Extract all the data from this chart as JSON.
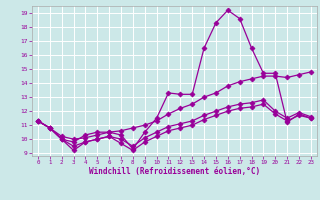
{
  "xlabel": "Windchill (Refroidissement éolien,°C)",
  "xlim": [
    -0.5,
    23.5
  ],
  "ylim": [
    8.8,
    19.5
  ],
  "yticks": [
    9,
    10,
    11,
    12,
    13,
    14,
    15,
    16,
    17,
    18,
    19
  ],
  "xticks": [
    0,
    1,
    2,
    3,
    4,
    5,
    6,
    7,
    8,
    9,
    10,
    11,
    12,
    13,
    14,
    15,
    16,
    17,
    18,
    19,
    20,
    21,
    22,
    23
  ],
  "bg_color": "#cce8e8",
  "grid_color": "#ffffff",
  "line_color": "#990099",
  "lines": [
    {
      "x": [
        0,
        1,
        2,
        3,
        4,
        5,
        6,
        7,
        8,
        9,
        10,
        11,
        12,
        13,
        14,
        15,
        16,
        17,
        18,
        19,
        20,
        21,
        22,
        23
      ],
      "y": [
        11.3,
        10.8,
        10.0,
        9.8,
        10.3,
        10.5,
        10.5,
        10.3,
        9.3,
        10.5,
        11.5,
        13.3,
        13.2,
        13.2,
        16.5,
        18.3,
        19.2,
        18.6,
        16.5,
        14.7,
        14.7,
        11.2,
        11.8,
        11.5
      ],
      "marker": "D",
      "markersize": 2.5,
      "lw": 0.9
    },
    {
      "x": [
        0,
        1,
        2,
        3,
        4,
        5,
        6,
        7,
        8,
        9,
        10,
        11,
        12,
        13,
        14,
        15,
        16,
        17,
        18,
        19,
        20,
        21,
        22,
        23
      ],
      "y": [
        11.3,
        10.8,
        10.2,
        10.0,
        10.1,
        10.3,
        10.5,
        10.6,
        10.8,
        11.0,
        11.3,
        11.8,
        12.2,
        12.5,
        13.0,
        13.3,
        13.8,
        14.1,
        14.3,
        14.5,
        14.5,
        14.4,
        14.6,
        14.8
      ],
      "marker": "D",
      "markersize": 2.5,
      "lw": 0.9
    },
    {
      "x": [
        0,
        1,
        2,
        3,
        4,
        5,
        6,
        7,
        8,
        9,
        10,
        11,
        12,
        13,
        14,
        15,
        16,
        17,
        18,
        19,
        20,
        21,
        22,
        23
      ],
      "y": [
        11.3,
        10.8,
        10.0,
        9.5,
        9.8,
        10.0,
        10.2,
        10.0,
        9.5,
        10.1,
        10.5,
        10.9,
        11.1,
        11.3,
        11.7,
        12.0,
        12.3,
        12.5,
        12.6,
        12.8,
        12.0,
        11.5,
        11.9,
        11.6
      ],
      "marker": "D",
      "markersize": 2.5,
      "lw": 0.9
    },
    {
      "x": [
        0,
        1,
        2,
        3,
        4,
        5,
        6,
        7,
        8,
        9,
        10,
        11,
        12,
        13,
        14,
        15,
        16,
        17,
        18,
        19,
        20,
        21,
        22,
        23
      ],
      "y": [
        11.3,
        10.8,
        10.0,
        9.2,
        9.8,
        10.0,
        10.2,
        9.7,
        9.2,
        9.8,
        10.2,
        10.6,
        10.8,
        11.0,
        11.4,
        11.7,
        12.0,
        12.2,
        12.3,
        12.5,
        11.8,
        11.3,
        11.7,
        11.5
      ],
      "marker": "D",
      "markersize": 2.5,
      "lw": 0.9
    }
  ]
}
